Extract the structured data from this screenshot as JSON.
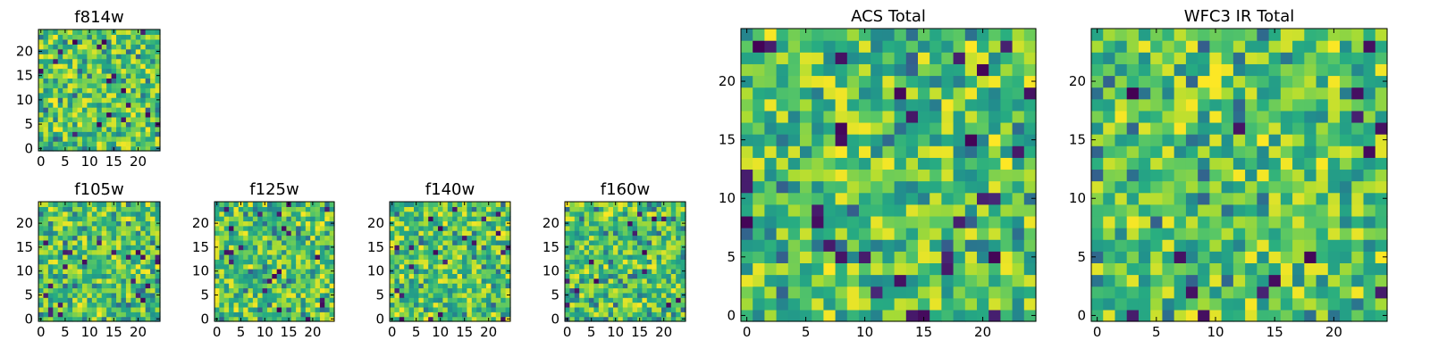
{
  "chart_data": [
    {
      "type": "heatmap",
      "title": "f814w",
      "grid_size": [
        25,
        25
      ],
      "colormap": "viridis",
      "values_note": "",
      "x_ticks": [
        "0",
        "5",
        "10",
        "15",
        "20"
      ],
      "y_ticks": [
        "0",
        "5",
        "10",
        "15",
        "20"
      ],
      "xlim": [
        0,
        25
      ],
      "ylim": [
        0,
        25
      ],
      "seed": 11
    },
    {
      "type": "heatmap",
      "title": "f105w",
      "grid_size": [
        25,
        25
      ],
      "colormap": "viridis",
      "x_ticks": [
        "0",
        "5",
        "10",
        "15",
        "20"
      ],
      "y_ticks": [
        "0",
        "5",
        "10",
        "15",
        "20"
      ],
      "xlim": [
        0,
        25
      ],
      "ylim": [
        0,
        25
      ],
      "seed": 23
    },
    {
      "type": "heatmap",
      "title": "f125w",
      "grid_size": [
        25,
        25
      ],
      "colormap": "viridis",
      "x_ticks": [
        "0",
        "5",
        "10",
        "15",
        "20"
      ],
      "y_ticks": [
        "0",
        "5",
        "10",
        "15",
        "20"
      ],
      "xlim": [
        0,
        25
      ],
      "ylim": [
        0,
        25
      ],
      "seed": 37
    },
    {
      "type": "heatmap",
      "title": "f140w",
      "grid_size": [
        25,
        25
      ],
      "colormap": "viridis",
      "x_ticks": [
        "0",
        "5",
        "10",
        "15",
        "20"
      ],
      "y_ticks": [
        "0",
        "5",
        "10",
        "15",
        "20"
      ],
      "xlim": [
        0,
        25
      ],
      "ylim": [
        0,
        25
      ],
      "seed": 41
    },
    {
      "type": "heatmap",
      "title": "f160w",
      "grid_size": [
        25,
        25
      ],
      "colormap": "viridis",
      "x_ticks": [
        "0",
        "5",
        "10",
        "15",
        "20"
      ],
      "y_ticks": [
        "0",
        "5",
        "10",
        "15",
        "20"
      ],
      "xlim": [
        0,
        25
      ],
      "ylim": [
        0,
        25
      ],
      "seed": 53
    },
    {
      "type": "heatmap",
      "title": "ACS Total",
      "grid_size": [
        25,
        25
      ],
      "colormap": "viridis",
      "x_ticks": [
        "0",
        "5",
        "10",
        "15",
        "20"
      ],
      "y_ticks": [
        "0",
        "5",
        "10",
        "15",
        "20"
      ],
      "xlim": [
        0,
        25
      ],
      "ylim": [
        0,
        25
      ],
      "seed": 67
    },
    {
      "type": "heatmap",
      "title": "WFC3 IR Total",
      "grid_size": [
        25,
        25
      ],
      "colormap": "viridis",
      "x_ticks": [
        "0",
        "5",
        "10",
        "15",
        "20"
      ],
      "y_ticks": [
        "0",
        "5",
        "10",
        "15",
        "20"
      ],
      "xlim": [
        0,
        25
      ],
      "ylim": [
        0,
        25
      ],
      "seed": 79
    }
  ],
  "colors": {
    "viridis_dark": "#440154",
    "viridis_blue": "#31688e",
    "viridis_teal": "#21918c",
    "viridis_green": "#5ec962",
    "viridis_yellow": "#fde725"
  }
}
